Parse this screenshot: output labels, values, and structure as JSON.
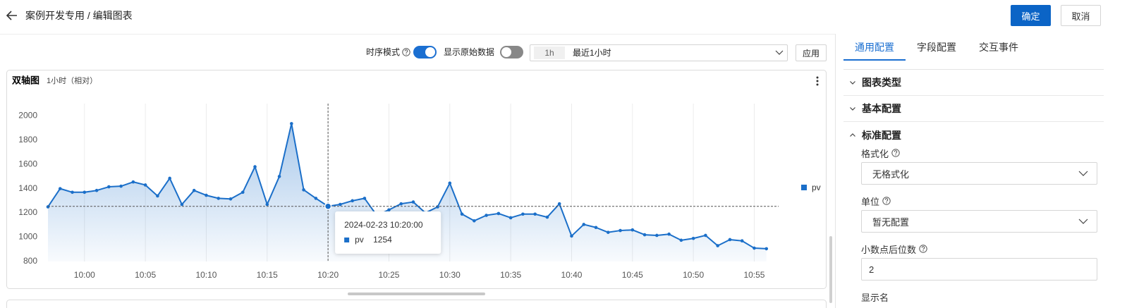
{
  "header": {
    "title": "案例开发专用 / 编辑图表",
    "confirm": "确定",
    "cancel": "取消"
  },
  "toolbar": {
    "timeseries_mode": "时序模式",
    "timeseries_on": true,
    "show_raw": "显示原始数据",
    "show_raw_on": false,
    "range_short": "1h",
    "range_label": "最近1小时",
    "apply": "应用"
  },
  "panel": {
    "title": "双轴图",
    "subtitle": "1小时（相对）"
  },
  "chart_data": {
    "type": "line",
    "area": true,
    "grid": "x",
    "legend": "right",
    "x": [
      "09:57",
      "09:58",
      "09:59",
      "10:00",
      "10:01",
      "10:02",
      "10:03",
      "10:04",
      "10:05",
      "10:06",
      "10:07",
      "10:08",
      "10:09",
      "10:10",
      "10:11",
      "10:12",
      "10:13",
      "10:14",
      "10:15",
      "10:16",
      "10:17",
      "10:18",
      "10:19",
      "10:20",
      "10:21",
      "10:22",
      "10:23",
      "10:24",
      "10:25",
      "10:26",
      "10:27",
      "10:28",
      "10:29",
      "10:30",
      "10:31",
      "10:32",
      "10:33",
      "10:34",
      "10:35",
      "10:36",
      "10:37",
      "10:38",
      "10:39",
      "10:40",
      "10:41",
      "10:42",
      "10:43",
      "10:44",
      "10:45",
      "10:46",
      "10:47",
      "10:48",
      "10:49",
      "10:50",
      "10:51",
      "10:52",
      "10:53",
      "10:54",
      "10:55",
      "10:56"
    ],
    "series": [
      {
        "name": "pv",
        "color": "#1b6fc9",
        "values": [
          1250,
          1400,
          1370,
          1370,
          1385,
          1415,
          1420,
          1455,
          1430,
          1340,
          1485,
          1270,
          1385,
          1345,
          1320,
          1315,
          1370,
          1580,
          1270,
          1500,
          1935,
          1390,
          1320,
          1254,
          1270,
          1300,
          1320,
          1180,
          1225,
          1275,
          1290,
          1200,
          1250,
          1445,
          1190,
          1135,
          1180,
          1195,
          1160,
          1190,
          1190,
          1165,
          1275,
          1010,
          1105,
          1080,
          1040,
          1055,
          1060,
          1020,
          1015,
          1025,
          975,
          990,
          1015,
          930,
          980,
          970,
          910,
          905
        ]
      }
    ],
    "xlim": [
      "09:57",
      "10:57"
    ],
    "xticks": [
      "10:00",
      "10:05",
      "10:10",
      "10:15",
      "10:20",
      "10:25",
      "10:30",
      "10:35",
      "10:40",
      "10:45",
      "10:50",
      "10:55"
    ],
    "ylim": [
      800,
      2100
    ],
    "yticks": [
      800,
      1000,
      1200,
      1400,
      1600,
      1800,
      2000
    ],
    "tooltip": {
      "title": "2024-02-23 10:20:00",
      "value": 1254
    }
  },
  "config": {
    "tabs": [
      "通用配置",
      "字段配置",
      "交互事件"
    ],
    "active_tab": 0,
    "sections": [
      {
        "title": "图表类型",
        "expanded": false
      },
      {
        "title": "基本配置",
        "expanded": false
      },
      {
        "title": "标准配置",
        "expanded": true
      }
    ],
    "fields": [
      {
        "label": "格式化",
        "help": true,
        "control": "select",
        "value": "无格式化"
      },
      {
        "label": "单位",
        "help": true,
        "control": "select",
        "value": "暂无配置"
      },
      {
        "label": "小数点后位数",
        "help": true,
        "control": "input",
        "value": 2
      },
      {
        "label": "显示名",
        "help": false
      }
    ]
  }
}
